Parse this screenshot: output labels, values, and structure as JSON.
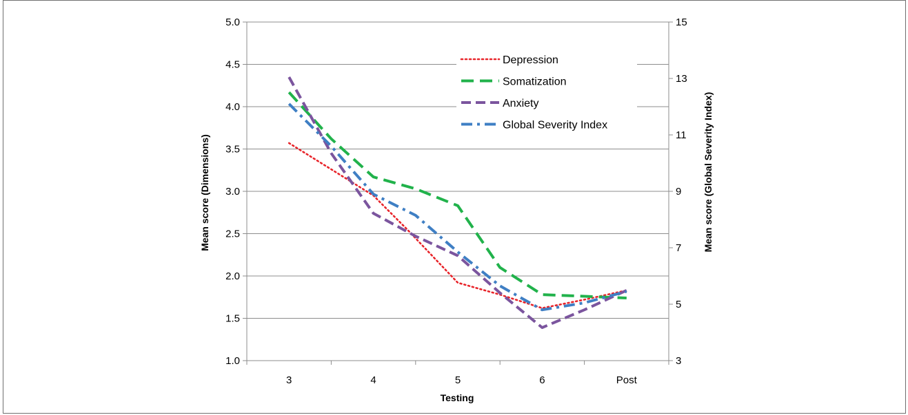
{
  "chart_data": {
    "type": "line",
    "categories": [
      "3",
      "4",
      "5",
      "6",
      "Post"
    ],
    "xlabel": "Testing",
    "ylabel": "Mean score (Dimensions)",
    "y2label": "Mean score (Global Severity Index)",
    "ylim": [
      1.0,
      5.0
    ],
    "y2lim": [
      3,
      15
    ],
    "yticks": [
      "1.0",
      "1.5",
      "2.0",
      "2.5",
      "3.0",
      "3.5",
      "4.0",
      "4.5",
      "5.0"
    ],
    "y2ticks": [
      "3",
      "5",
      "7",
      "9",
      "11",
      "13",
      "15"
    ],
    "grid": "horizontal",
    "legend_position": "top-right",
    "series": [
      {
        "name": "Depression",
        "axis": "left",
        "color": "#e8242a",
        "dash": "dotted",
        "x": [
          3,
          4,
          4.4,
          5,
          5.5,
          6,
          6.5,
          7
        ],
        "values": [
          3.57,
          2.95,
          2.55,
          1.92,
          1.78,
          1.62,
          1.72,
          1.83
        ]
      },
      {
        "name": "Somatization",
        "axis": "left",
        "color": "#21b24b",
        "dash": "long-dash",
        "x": [
          3,
          3.5,
          4,
          4.5,
          5,
          5.5,
          6,
          6.5,
          7
        ],
        "values": [
          4.17,
          3.62,
          3.17,
          3.03,
          2.83,
          2.1,
          1.78,
          1.76,
          1.74
        ]
      },
      {
        "name": "Anxiety",
        "axis": "left",
        "color": "#7b559e",
        "dash": "dashed",
        "x": [
          3,
          3.5,
          4,
          4.5,
          5,
          5.5,
          6,
          6.5,
          7
        ],
        "values": [
          4.35,
          3.45,
          2.74,
          2.47,
          2.24,
          1.8,
          1.39,
          1.6,
          1.83
        ]
      },
      {
        "name": "Global Severity Index",
        "axis": "right",
        "color": "#3f7fc4",
        "dash": "dash-dot",
        "x": [
          3,
          3.5,
          4,
          4.5,
          5,
          5.5,
          6,
          6.5,
          7
        ],
        "values": [
          12.1,
          10.6,
          8.9,
          8.15,
          6.85,
          5.65,
          4.8,
          5.05,
          5.45
        ]
      }
    ]
  }
}
